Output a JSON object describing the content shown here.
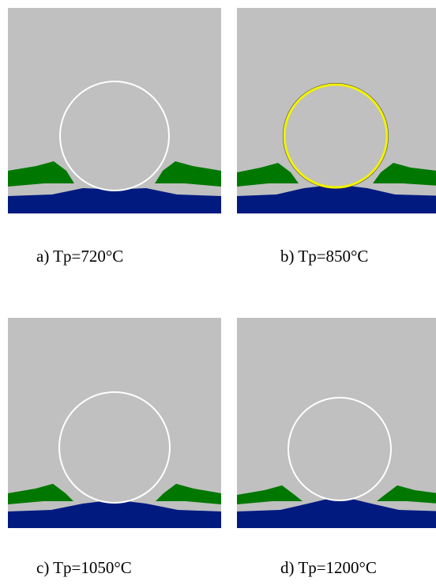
{
  "panels": [
    {
      "caption": "a) Tp=720°C"
    },
    {
      "caption": "b) Tp=850°C"
    },
    {
      "caption": "c) Tp=1050°C"
    },
    {
      "caption": "d) Tp=1200°C"
    }
  ]
}
